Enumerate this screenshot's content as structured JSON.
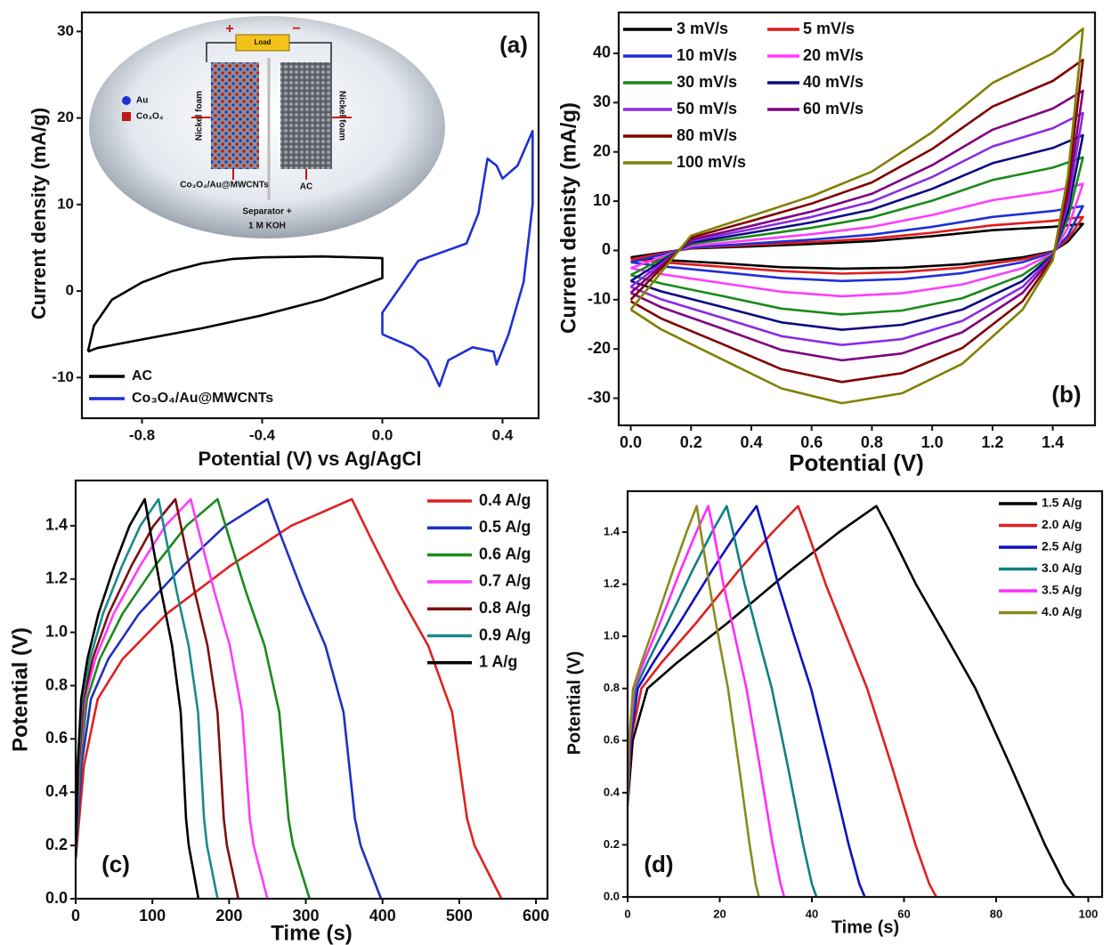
{
  "chart_data": [
    {
      "type": "line",
      "xlabel": "Potential (V) vs Ag/AgCl",
      "ylabel": "Current density (mA/g)",
      "annotation": "(a)",
      "xlim": [
        -1.0,
        0.52
      ],
      "xticks": [
        -0.8,
        -0.4,
        {
          "value": 0,
          "label": "0.0"
        },
        0.4
      ],
      "ylim": [
        -14.7,
        32.2
      ],
      "yticks": [
        -10,
        0,
        10,
        20,
        30
      ],
      "series": [
        {
          "name": "AC",
          "color": "#000000",
          "x": [
            -0.98,
            -0.96,
            -0.9,
            -0.8,
            -0.7,
            -0.6,
            -0.5,
            -0.4,
            -0.2,
            0.0,
            0.0,
            -0.2,
            -0.4,
            -0.6,
            -0.8,
            -0.95,
            -0.98
          ],
          "values": [
            -7,
            -4,
            -1,
            1,
            2.3,
            3.2,
            3.7,
            3.9,
            4,
            3.8,
            1.5,
            -1,
            -2.8,
            -4.3,
            -5.6,
            -6.6,
            -7
          ]
        },
        {
          "name": "Co₃O₄/Au@MWCNTs",
          "color": "#1f2fd6",
          "x": [
            0.0,
            0.0,
            0.05,
            0.12,
            0.2,
            0.28,
            0.32,
            0.35,
            0.38,
            0.4,
            0.45,
            0.5,
            0.5,
            0.47,
            0.42,
            0.38,
            0.37,
            0.3,
            0.22,
            0.19,
            0.15,
            0.1,
            0.0
          ],
          "values": [
            -5,
            -2.5,
            0,
            3.5,
            4.5,
            5.5,
            9,
            15.3,
            14.5,
            13,
            14.5,
            18.5,
            10,
            1,
            -5,
            -8.5,
            -7,
            -6.5,
            -8,
            -11,
            -8,
            -6.5,
            -5
          ]
        }
      ],
      "inset": {
        "load": "Load",
        "plus": "+",
        "minus": "−",
        "au": "Au",
        "co3o4": "Co₃O₄",
        "nickel_foam_left": "Nickel foam",
        "nickel_foam_right": "Nickel foam",
        "left_electrode": "Co₃O₄/Au@MWCNTs",
        "right_electrode": "AC",
        "separator": "Separator +",
        "electrolyte": "1 M KOH"
      }
    },
    {
      "type": "line",
      "xlabel": "Potential (V)",
      "ylabel": "Current denisty (mA/g)",
      "annotation": "(b)",
      "xlim": [
        -0.04,
        1.54
      ],
      "xticks": [
        {
          "value": 0,
          "label": "0.0"
        },
        0.2,
        0.4,
        0.6,
        0.8,
        {
          "value": 1,
          "label": "1.0"
        },
        1.2,
        1.4
      ],
      "ylim": [
        -35.5,
        48.3
      ],
      "yticks": [
        -30,
        -20,
        -10,
        0,
        10,
        20,
        30,
        40
      ],
      "x": [
        0,
        0.2,
        0.4,
        0.6,
        0.8,
        1.0,
        1.2,
        1.4,
        1.5,
        1.5,
        1.45,
        1.4,
        1.3,
        1.1,
        0.9,
        0.7,
        0.5,
        0.3,
        0.1,
        0.0
      ],
      "series": [
        {
          "name": "3 mV/s",
          "color": "#000000",
          "values": [
            -1.4,
            0.4,
            0.8,
            1.3,
            1.9,
            2.9,
            4.1,
            4.8,
            5.4,
            5.4,
            1.8,
            -0.2,
            -1.4,
            -2.8,
            -3.5,
            -3.7,
            -3.4,
            -2.6,
            -1.9,
            -1.4
          ]
        },
        {
          "name": "5 mV/s",
          "color": "#e01a1a",
          "values": [
            -1.8,
            0.5,
            1.1,
            1.7,
            2.4,
            3.6,
            5.1,
            6,
            6.8,
            6.8,
            2.3,
            -0.3,
            -1.8,
            -3.5,
            -4.4,
            -4.7,
            -4.2,
            -3.3,
            -2.4,
            -1.8
          ]
        },
        {
          "name": "10 mV/s",
          "color": "#1f2fd6",
          "values": [
            -2.4,
            0.6,
            1.4,
            2.2,
            3.2,
            4.8,
            6.8,
            8,
            9,
            9,
            3,
            -0.4,
            -2.4,
            -4.6,
            -5.8,
            -6.2,
            -5.6,
            -4.4,
            -3.2,
            -2.4
          ]
        },
        {
          "name": "20 mV/s",
          "color": "#ff3cff",
          "values": [
            -3.6,
            0.9,
            2.1,
            3.3,
            4.8,
            7.2,
            10.2,
            12,
            13.5,
            13.5,
            4.5,
            -0.6,
            -3.6,
            -6.9,
            -8.7,
            -9.3,
            -8.4,
            -6.6,
            -4.8,
            -3.6
          ]
        },
        {
          "name": "30 mV/s",
          "color": "#1a8a1a",
          "values": [
            -5,
            1.3,
            2.9,
            4.6,
            6.7,
            10.1,
            14.3,
            16.8,
            18.9,
            18.9,
            6.3,
            -0.8,
            -5,
            -9.7,
            -12.2,
            -13,
            -11.8,
            -9.2,
            -6.7,
            -5
          ]
        },
        {
          "name": "40 mV/s",
          "color": "#0a0a80",
          "values": [
            -6.2,
            1.6,
            3.6,
            5.7,
            8.3,
            12.5,
            17.7,
            20.8,
            23.4,
            23.4,
            7.8,
            -1,
            -6.2,
            -12,
            -15.1,
            -16.1,
            -14.6,
            -11.4,
            -8.3,
            -6.2
          ]
        },
        {
          "name": "50 mV/s",
          "color": "#8a2be2",
          "values": [
            -7.4,
            1.9,
            4.3,
            6.8,
            9.9,
            14.9,
            21.1,
            24.8,
            27.9,
            27.9,
            9.3,
            -1.2,
            -7.4,
            -14.3,
            -18,
            -19.2,
            -17.4,
            -13.6,
            -9.9,
            -7.4
          ]
        },
        {
          "name": "60 mV/s",
          "color": "#800080",
          "values": [
            -8.6,
            2.2,
            5,
            7.9,
            11.5,
            17.3,
            24.5,
            28.8,
            32.4,
            32.4,
            10.8,
            -1.4,
            -8.6,
            -16.6,
            -20.9,
            -22.3,
            -20.2,
            -15.8,
            -11.5,
            -8.6
          ]
        },
        {
          "name": "80 mV/s",
          "color": "#800000",
          "values": [
            -10,
            2.6,
            6,
            9.5,
            13.8,
            20.6,
            29.2,
            34.4,
            38.7,
            38.7,
            12.9,
            -1.7,
            -10.3,
            -19.8,
            -24.9,
            -26.7,
            -24.1,
            -18.9,
            -13.8,
            -10.3
          ]
        },
        {
          "name": "100 mV/s",
          "color": "#808000",
          "values": [
            -12,
            3,
            7,
            11,
            16,
            24,
            34,
            40,
            45,
            45,
            15,
            -2,
            -12,
            -23,
            -29,
            -31,
            -28,
            -22,
            -16,
            -12
          ]
        }
      ]
    },
    {
      "type": "line",
      "xlabel": "Time (s)",
      "ylabel": "Potential (V)",
      "annotation": "(c)",
      "xlim": [
        0,
        615
      ],
      "xticks": [
        0,
        100,
        200,
        300,
        400,
        500,
        600
      ],
      "ylim": [
        0,
        1.57
      ],
      "yticks": [
        {
          "value": 0,
          "label": "0.0"
        },
        0.2,
        0.4,
        0.6,
        0.8,
        {
          "value": 1,
          "label": "1.0"
        },
        1.2,
        1.4
      ],
      "series": [
        {
          "name": "0.4 A/g",
          "color": "#e02020",
          "x": [
            0,
            10.8,
            28.8,
            61.2,
            118.8,
            201.6,
            280.8,
            360,
            385.4,
            420.5,
            459.5,
            490.7,
            510.2,
            519.9,
            555
          ],
          "values": [
            0.15,
            0.5,
            0.75,
            0.9,
            1.07,
            1.25,
            1.4,
            1.5,
            1.35,
            1.15,
            0.95,
            0.7,
            0.3,
            0.2,
            0
          ]
        },
        {
          "name": "0.5 A/g",
          "color": "#2030c0",
          "x": [
            0,
            7.5,
            20,
            42.5,
            82.5,
            140,
            195,
            250,
            269.2,
            295.9,
            325.5,
            349.2,
            364,
            371.4,
            398
          ],
          "values": [
            0.15,
            0.5,
            0.75,
            0.9,
            1.07,
            1.25,
            1.4,
            1.5,
            1.35,
            1.15,
            0.95,
            0.7,
            0.3,
            0.2,
            0
          ]
        },
        {
          "name": "0.6 A/g",
          "color": "#1a8a1a",
          "x": [
            0,
            5.6,
            14.8,
            31.5,
            61,
            103.6,
            144.3,
            185,
            200.6,
            222.2,
            246.2,
            265.4,
            277.4,
            283.4,
            305
          ],
          "values": [
            0.15,
            0.5,
            0.75,
            0.9,
            1.07,
            1.25,
            1.4,
            1.5,
            1.35,
            1.15,
            0.95,
            0.7,
            0.3,
            0.2,
            0
          ]
        },
        {
          "name": "0.7 A/g",
          "color": "#ff3cff",
          "x": [
            0,
            4.5,
            12,
            25.5,
            49.5,
            84,
            117,
            150,
            163,
            181,
            201,
            217,
            227,
            232,
            250
          ],
          "values": [
            0.15,
            0.5,
            0.75,
            0.9,
            1.07,
            1.25,
            1.4,
            1.5,
            1.35,
            1.15,
            0.95,
            0.7,
            0.3,
            0.2,
            0
          ]
        },
        {
          "name": "0.8 A/g",
          "color": "#7b1010",
          "x": [
            0,
            3.9,
            10.4,
            22.1,
            42.9,
            72.8,
            101.4,
            130,
            140.7,
            155.4,
            171.8,
            184.9,
            193.1,
            197.2,
            212
          ],
          "values": [
            0.15,
            0.5,
            0.75,
            0.9,
            1.07,
            1.25,
            1.4,
            1.5,
            1.35,
            1.15,
            0.95,
            0.7,
            0.3,
            0.2,
            0
          ]
        },
        {
          "name": "0.9 A/g",
          "color": "#1a8a8a",
          "x": [
            0,
            3.2,
            8.6,
            18.4,
            35.6,
            60.5,
            84.2,
            108,
            118,
            131.9,
            147.3,
            159.6,
            167.3,
            171.1,
            185
          ],
          "values": [
            0.15,
            0.5,
            0.75,
            0.9,
            1.07,
            1.25,
            1.4,
            1.5,
            1.35,
            1.15,
            0.95,
            0.7,
            0.3,
            0.2,
            0
          ]
        },
        {
          "name": "1 A/g",
          "color": "#000000",
          "x": [
            0,
            2.7,
            7.2,
            15.3,
            29.7,
            50.4,
            70.2,
            90,
            99.1,
            111.7,
            125.7,
            136.9,
            143.9,
            147.4,
            160
          ],
          "values": [
            0.15,
            0.5,
            0.75,
            0.9,
            1.07,
            1.25,
            1.4,
            1.5,
            1.35,
            1.15,
            0.95,
            0.7,
            0.3,
            0.2,
            0
          ]
        }
      ]
    },
    {
      "type": "line",
      "xlabel": "Time (s)",
      "ylabel": "Potential (V)",
      "annotation": "(d)",
      "xlim": [
        0,
        103
      ],
      "xticks": [
        0,
        20,
        40,
        60,
        80,
        100
      ],
      "ylim": [
        0,
        1.557
      ],
      "yticks": [
        {
          "value": 0,
          "label": "0.0"
        },
        0.2,
        0.4,
        0.6,
        0.8,
        {
          "value": 1,
          "label": "1.0"
        },
        1.2,
        1.4
      ],
      "series": [
        {
          "name": "1.5 A/g",
          "color": "#000000",
          "x": [
            0,
            1.1,
            4.3,
            10.8,
            21.6,
            35.1,
            45.9,
            54,
            57,
            62.6,
            69.1,
            75.5,
            83.2,
            90.6,
            94.9,
            97
          ],
          "values": [
            0.35,
            0.6,
            0.8,
            0.9,
            1.05,
            1.25,
            1.4,
            1.5,
            1.4,
            1.2,
            1.0,
            0.8,
            0.5,
            0.2,
            0.05,
            0
          ]
        },
        {
          "name": "2.0 A/g",
          "color": "#e02020",
          "x": [
            0,
            0.7,
            3,
            7.4,
            14.8,
            24,
            31.5,
            37,
            39.1,
            43,
            47.5,
            52,
            57.4,
            62.5,
            65.5,
            67
          ],
          "values": [
            0.35,
            0.6,
            0.8,
            0.9,
            1.05,
            1.25,
            1.4,
            1.5,
            1.4,
            1.2,
            1.0,
            0.8,
            0.5,
            0.2,
            0.05,
            0
          ]
        },
        {
          "name": "2.5 A/g",
          "color": "#1010c0",
          "x": [
            0,
            0.6,
            2.2,
            5.6,
            11.2,
            18.2,
            23.8,
            28,
            29.6,
            32.7,
            36.2,
            39.8,
            44,
            48,
            50.3,
            51.5
          ],
          "values": [
            0.35,
            0.6,
            0.8,
            0.9,
            1.05,
            1.25,
            1.4,
            1.5,
            1.4,
            1.2,
            1.0,
            0.8,
            0.5,
            0.2,
            0.05,
            0
          ]
        },
        {
          "name": "3.0 A/g",
          "color": "#108080",
          "x": [
            0,
            0.4,
            1.7,
            4.3,
            8.6,
            14,
            18.3,
            21.5,
            22.9,
            25.4,
            28.3,
            31.3,
            34.8,
            38.1,
            40,
            41
          ],
          "values": [
            0.35,
            0.6,
            0.8,
            0.9,
            1.05,
            1.25,
            1.4,
            1.5,
            1.4,
            1.2,
            1.0,
            0.8,
            0.5,
            0.2,
            0.05,
            0
          ]
        },
        {
          "name": "3.5 A/g",
          "color": "#ff2cff",
          "x": [
            0,
            0.4,
            1.4,
            3.5,
            7,
            11.4,
            14.9,
            17.5,
            18.7,
            20.8,
            23.3,
            25.8,
            28.7,
            31.5,
            33.2,
            34
          ],
          "values": [
            0.35,
            0.6,
            0.8,
            0.9,
            1.05,
            1.25,
            1.4,
            1.5,
            1.4,
            1.2,
            1.0,
            0.8,
            0.5,
            0.2,
            0.05,
            0
          ]
        },
        {
          "name": "4.0 A/g",
          "color": "#8a8a20",
          "x": [
            0,
            0.3,
            1.2,
            3,
            6,
            9.8,
            12.8,
            15,
            15.9,
            17.7,
            19.7,
            21.8,
            24.2,
            26.5,
            27.8,
            28.5
          ],
          "values": [
            0.35,
            0.6,
            0.8,
            0.9,
            1.05,
            1.25,
            1.4,
            1.5,
            1.4,
            1.2,
            1.0,
            0.8,
            0.5,
            0.2,
            0.05,
            0
          ]
        }
      ]
    }
  ]
}
